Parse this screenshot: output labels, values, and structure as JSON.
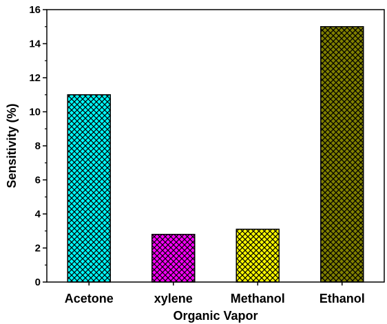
{
  "chart_data": {
    "type": "bar",
    "categories": [
      "Acetone",
      "xylene",
      "Methanol",
      "Ethanol"
    ],
    "values": [
      11.0,
      2.8,
      3.1,
      15.0
    ],
    "colors": [
      "#00ffff",
      "#ff00ff",
      "#ffff00",
      "#808000"
    ],
    "pattern": "crosshatch",
    "xlabel": "Organic Vapor",
    "ylabel": "Sensitivity (%)",
    "ylim": [
      0,
      16
    ],
    "yticks": [
      "0",
      "2",
      "4",
      "6",
      "8",
      "10",
      "12",
      "14",
      "16"
    ],
    "grid": false
  }
}
